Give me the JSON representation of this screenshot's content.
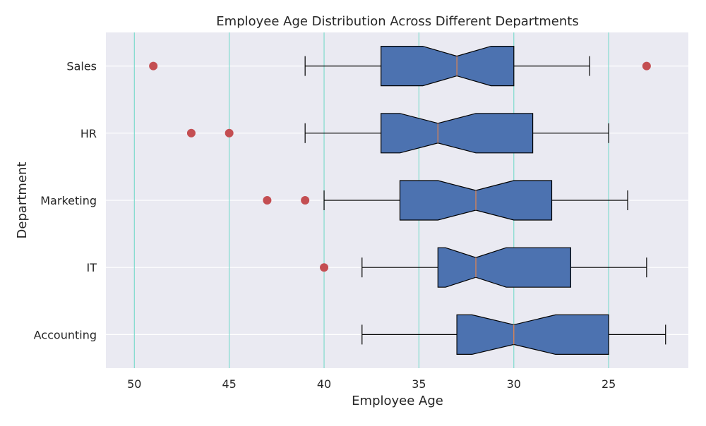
{
  "chart_data": {
    "type": "boxplot",
    "orientation": "horizontal",
    "notched": true,
    "title": "Employee Age Distribution Across Different Departments",
    "xlabel": "Employee Age",
    "ylabel": "Department",
    "x_axis_inverted": true,
    "xlim": [
      51.5,
      20.8
    ],
    "x_ticks": [
      50,
      45,
      40,
      35,
      30,
      25
    ],
    "vertical_gridlines": [
      50,
      45,
      40,
      35,
      30,
      25
    ],
    "categories": [
      "Accounting",
      "IT",
      "Marketing",
      "HR",
      "Sales"
    ],
    "boxes": [
      {
        "category": "Accounting",
        "whisker_low": 22,
        "q1": 25,
        "median": 30,
        "q3": 33,
        "whisker_high": 38,
        "notch_low": 27.8,
        "notch_high": 32.2,
        "outliers": []
      },
      {
        "category": "IT",
        "whisker_low": 23,
        "q1": 27,
        "median": 32,
        "q3": 34,
        "whisker_high": 38,
        "notch_low": 30.4,
        "notch_high": 33.6,
        "outliers": [
          40
        ]
      },
      {
        "category": "Marketing",
        "whisker_low": 24,
        "q1": 28,
        "median": 32,
        "q3": 36,
        "whisker_high": 40,
        "notch_low": 30.0,
        "notch_high": 34.0,
        "outliers": [
          41,
          43
        ]
      },
      {
        "category": "HR",
        "whisker_low": 25,
        "q1": 29,
        "median": 34,
        "q3": 37,
        "whisker_high": 41,
        "notch_low": 32.0,
        "notch_high": 36.0,
        "outliers": [
          45,
          47
        ]
      },
      {
        "category": "Sales",
        "whisker_low": 26,
        "q1": 30,
        "median": 33,
        "q3": 37,
        "whisker_high": 41,
        "notch_low": 31.2,
        "notch_high": 34.8,
        "outliers": [
          23,
          49
        ]
      }
    ],
    "colors": {
      "box_fill": "#4c72b0",
      "median_line": "#dd8452",
      "outlier": "#c44e52",
      "vgrid": "#7fdbcd",
      "plot_bg": "#eaeaf2",
      "hgrid": "#ffffff"
    },
    "grid": true
  }
}
